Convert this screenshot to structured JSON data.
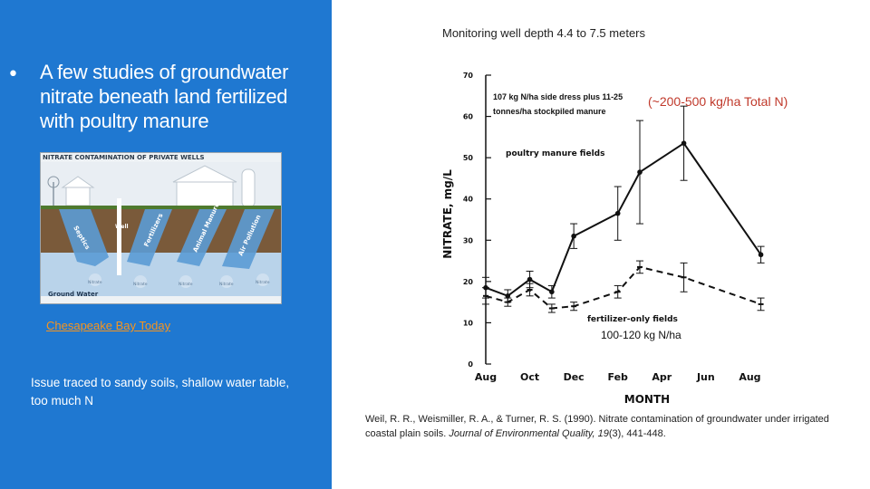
{
  "left": {
    "bullet": "•",
    "headline": "A few studies of groundwater nitrate beneath land fertilized with poultry manure",
    "illustration": {
      "title": "NITRATE CONTAMINATION OF PRIVATE WELLS",
      "well_label": "Well",
      "caption": "Ground Water",
      "arrow_labels": [
        "Septics",
        "Fertilizers",
        "Animal Manure",
        "Air Pollution"
      ],
      "drip_labels": [
        "Nitrate",
        "Nitrate",
        "Nitrate",
        "Nitrate",
        "Nitrate"
      ]
    },
    "link_text": "Chesapeake Bay Today",
    "issue_text": "Issue traced to sandy soils, shallow water table, too much N"
  },
  "right": {
    "top_caption": "Monitoring well depth 4.4 to 7.5 meters",
    "red_annotation": "(~200-500 kg/ha Total N)",
    "citation": {
      "authors": "Weil, R. R., Weismiller, R. A., & Turner, R. S. (1990). Nitrate contamination of groundwater under irrigated coastal plain soils. ",
      "journal": "Journal of Environmental Quality, 19",
      "issue_pages": "(3), 441-448."
    }
  },
  "chart_data": {
    "type": "line",
    "title": "",
    "xlabel": "MONTH",
    "ylabel": "NITRATE, mg/L",
    "ylim": [
      0,
      70
    ],
    "yticks": [
      0,
      10,
      20,
      30,
      40,
      50,
      60,
      70
    ],
    "xticks": [
      "Aug",
      "Oct",
      "Dec",
      "Feb",
      "Apr",
      "Jun",
      "Aug"
    ],
    "xlim": [
      0,
      12.6
    ],
    "grid": false,
    "annotations": {
      "manure_rate": [
        "107 kg N/ha side dress plus 11-25",
        "tonnes/ha stockpiled manure"
      ],
      "fertilizer_rate": "100-120 kg N/ha"
    },
    "series": [
      {
        "name": "poultry manure fields",
        "style": "solid",
        "x": [
          0,
          1,
          2,
          3,
          4,
          6,
          7,
          9,
          12.5
        ],
        "y": [
          18.5,
          16.5,
          20.5,
          17.5,
          31,
          36.5,
          46.5,
          53.5,
          26.5
        ],
        "err": [
          2.5,
          1.5,
          2,
          1.5,
          3,
          6.5,
          12.5,
          9,
          2
        ]
      },
      {
        "name": "fertilizer-only fields",
        "style": "dashed",
        "x": [
          0,
          1,
          2,
          3,
          4,
          6,
          7,
          9,
          12.5
        ],
        "y": [
          16.5,
          15,
          18,
          13.5,
          14,
          17.5,
          23.5,
          21,
          14.5
        ],
        "err": [
          2,
          1,
          1.5,
          1,
          1,
          1.5,
          1.5,
          3.5,
          1.5
        ]
      }
    ]
  }
}
